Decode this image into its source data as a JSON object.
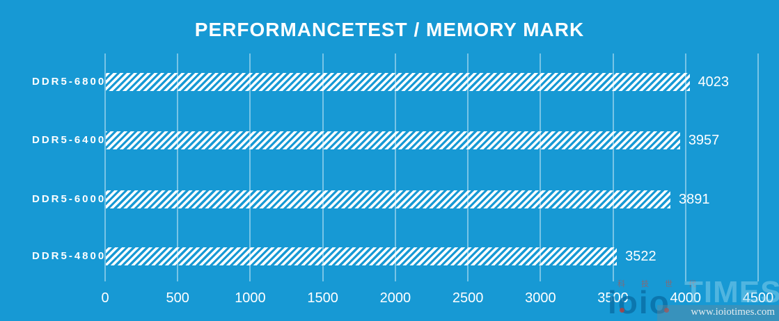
{
  "title": "PERFORMANCETEST / MEMORY MARK",
  "chart_data": {
    "type": "bar",
    "orientation": "horizontal",
    "title": "PERFORMANCETEST / MEMORY MARK",
    "categories": [
      "DDR5-6800",
      "DDR5-6400",
      "DDR5-6000",
      "DDR5-4800"
    ],
    "values": [
      4023,
      3957,
      3891,
      3522
    ],
    "xlabel": "",
    "ylabel": "",
    "xlim": [
      0,
      4500
    ],
    "xticks": [
      0,
      500,
      1000,
      1500,
      2000,
      2500,
      3000,
      3500,
      4000,
      4500
    ],
    "grid": true,
    "legend": false,
    "bar_style": "white-diagonal-hatch",
    "colors": {
      "background": "#1799d4",
      "gridline": "rgba(255,255,255,0.42)",
      "bar_stripe": "#ffffff",
      "text": "#ffffff"
    }
  },
  "watermark": {
    "logo_text": "ioio",
    "logo_suffix": "TIMES",
    "tagline": "科 技 世 代",
    "url": "www.ioiotimes.com"
  }
}
